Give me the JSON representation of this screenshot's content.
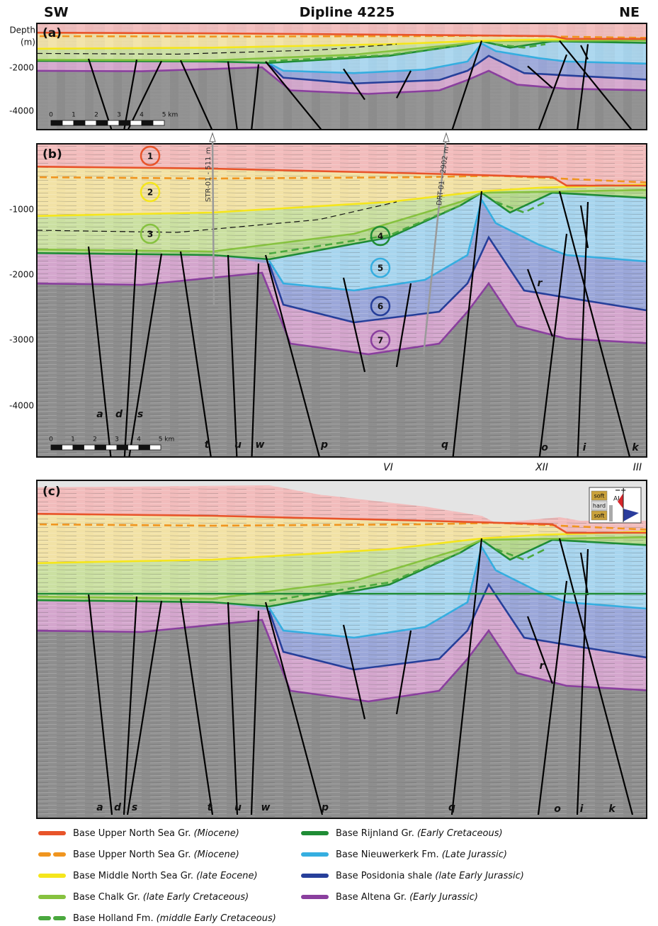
{
  "header": {
    "left": "SW",
    "title": "Dipline 4225",
    "right": "NE"
  },
  "panel_a": {
    "label": "(a)",
    "axis_label": [
      "Depth",
      "(m)"
    ],
    "ticks": [
      "-2000",
      "-4000"
    ],
    "scale": [
      "0",
      "1",
      "2",
      "3",
      "4",
      "5 km"
    ]
  },
  "panel_b": {
    "label": "(b)",
    "ticks": [
      "-1000",
      "-2000",
      "-3000",
      "-4000"
    ],
    "units": [
      "1",
      "2",
      "3",
      "4",
      "5",
      "6",
      "7"
    ],
    "wells": [
      "STR-01 - 511 m",
      "DRT-01 - 2902 m"
    ],
    "faults": [
      "a",
      "d",
      "s",
      "t",
      "u",
      "w",
      "p",
      "q",
      "o",
      "i",
      "k",
      "r"
    ],
    "structures": [
      "VI",
      "XII",
      "III"
    ],
    "scale": [
      "0",
      "1",
      "2",
      "3",
      "4",
      "5 km"
    ]
  },
  "panel_c": {
    "label": "(c)",
    "faults": [
      "a",
      "d",
      "s",
      "t",
      "u",
      "w",
      "p",
      "q",
      "o",
      "i",
      "k",
      "r"
    ],
    "inset": {
      "labels": [
        "soft",
        "hard",
        "soft"
      ],
      "ai": "AI",
      "minus": "−",
      "plus": "+"
    }
  },
  "legend": [
    {
      "name": "Base Upper North Sea Gr.",
      "age": "(Miocene)"
    },
    {
      "name": "Base Upper North Sea Gr.",
      "age": "(Miocene)"
    },
    {
      "name": "Base Middle North Sea Gr.",
      "age": "(late Eocene)"
    },
    {
      "name": "Base Chalk Gr.",
      "age": "(late Early Cretaceous)"
    },
    {
      "name": "Base Holland Fm.",
      "age": "(middle Early Cretaceous)"
    },
    {
      "name": "Base Rijnland Gr.",
      "age": "(Early Cretaceous)"
    },
    {
      "name": "Base Nieuwerkerk Fm.",
      "age": "(Late Jurassic)"
    },
    {
      "name": "Base Posidonia shale",
      "age": "(late Early Jurassic)"
    },
    {
      "name": "Base Altena Gr.",
      "age": "(Early Jurassic)"
    }
  ]
}
